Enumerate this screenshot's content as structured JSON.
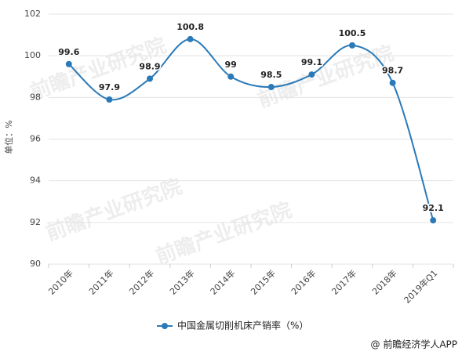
{
  "chart_data": {
    "type": "line",
    "watermark": "前瞻产业研究院",
    "y_label": "单位：%",
    "categories": [
      "2010年",
      "2011年",
      "2012年",
      "2013年",
      "2014年",
      "2015年",
      "2016年",
      "2017年",
      "2018年",
      "2019年Q1"
    ],
    "series": [
      {
        "name": "中国金属切削机床产销率（%）",
        "color": "#2a7ab8",
        "values": [
          99.6,
          97.9,
          98.9,
          100.8,
          99,
          98.5,
          99.1,
          100.5,
          98.7,
          92.1
        ]
      }
    ],
    "ylim": [
      90,
      102
    ],
    "yticks": [
      90,
      92,
      94,
      96,
      98,
      100,
      102
    ],
    "grid": true,
    "source": "@ 前瞻经济学人APP"
  }
}
